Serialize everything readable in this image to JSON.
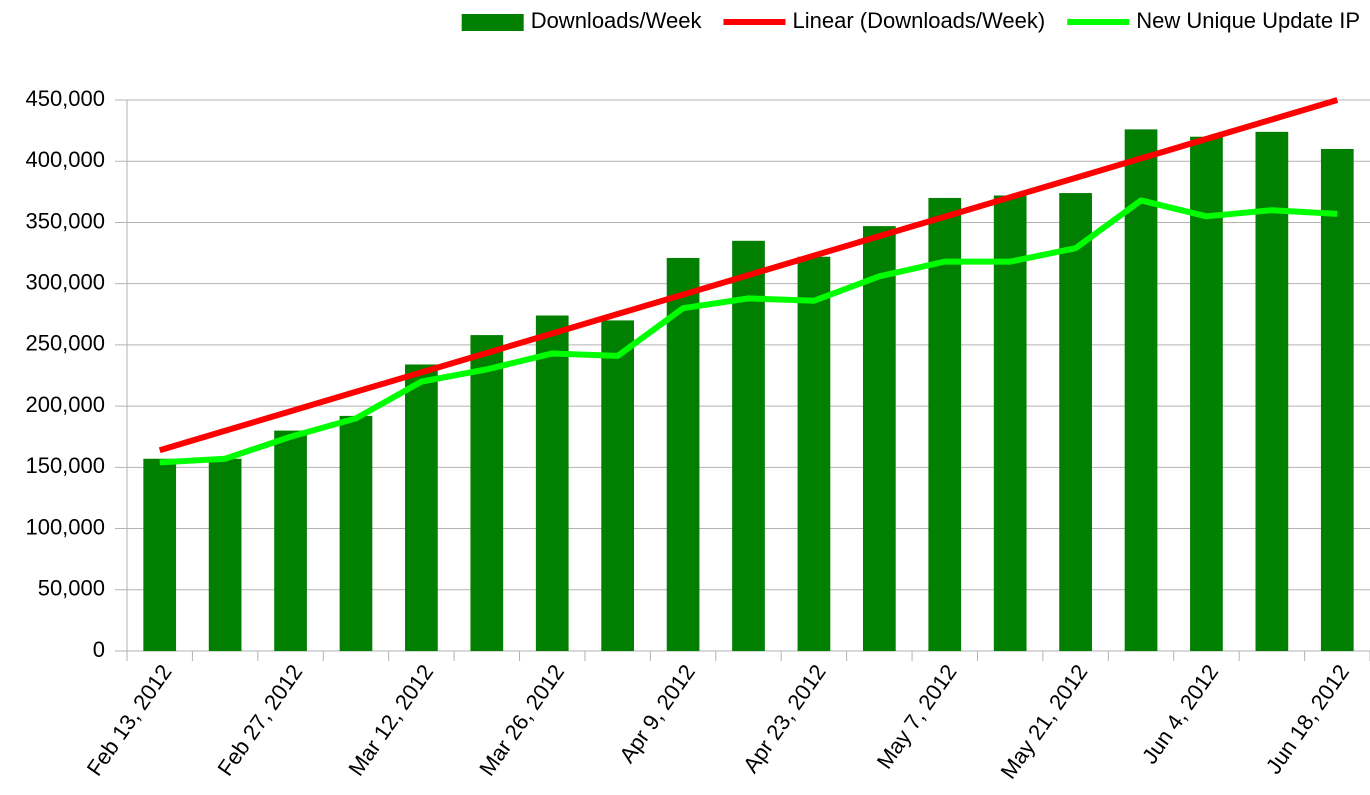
{
  "chart_data": {
    "type": "bar",
    "categories": [
      "Feb 13, 2012",
      null,
      "Feb 27, 2012",
      null,
      "Mar 12, 2012",
      null,
      "Mar 26, 2012",
      null,
      "Apr 9, 2012",
      null,
      "Apr 23, 2012",
      null,
      "May 7, 2012",
      null,
      "May 21, 2012",
      null,
      "Jun 4, 2012",
      null,
      "Jun 18, 2012"
    ],
    "series": [
      {
        "name": "Downloads/Week",
        "type": "bar",
        "color": "#007f00",
        "values": [
          157000,
          157000,
          180000,
          192000,
          234000,
          258000,
          274000,
          270000,
          321000,
          335000,
          322000,
          347000,
          370000,
          372000,
          374000,
          426000,
          420000,
          424000,
          410000
        ]
      },
      {
        "name": "Linear (Downloads/Week)",
        "type": "line",
        "color": "#ff0000",
        "values": [
          164000,
          179900,
          195800,
          211700,
          227600,
          243400,
          259300,
          275200,
          291100,
          307000,
          322900,
          338800,
          354700,
          370600,
          386400,
          402300,
          418200,
          434100,
          450000
        ]
      },
      {
        "name": "New Unique Update IP",
        "type": "line",
        "color": "#00ff00",
        "values": [
          154000,
          157000,
          175000,
          190000,
          220000,
          230000,
          243000,
          241000,
          280000,
          288000,
          286000,
          306000,
          318000,
          318000,
          329000,
          368000,
          355000,
          360000,
          357000
        ]
      }
    ],
    "ylim": [
      0,
      450000
    ],
    "yticks": [
      0,
      {
        "value": 50000,
        "label": "50,000"
      },
      {
        "value": 100000,
        "label": "100,000"
      },
      {
        "value": 150000,
        "label": "150,000"
      },
      {
        "value": 200000,
        "label": "200,000"
      },
      {
        "value": 250000,
        "label": "250,000"
      },
      {
        "value": 300000,
        "label": "300,000"
      },
      {
        "value": 350000,
        "label": "350,000"
      },
      {
        "value": 400000,
        "label": "400,000"
      },
      {
        "value": 450000,
        "label": "450,000"
      }
    ],
    "grid": true,
    "legend": "top"
  }
}
